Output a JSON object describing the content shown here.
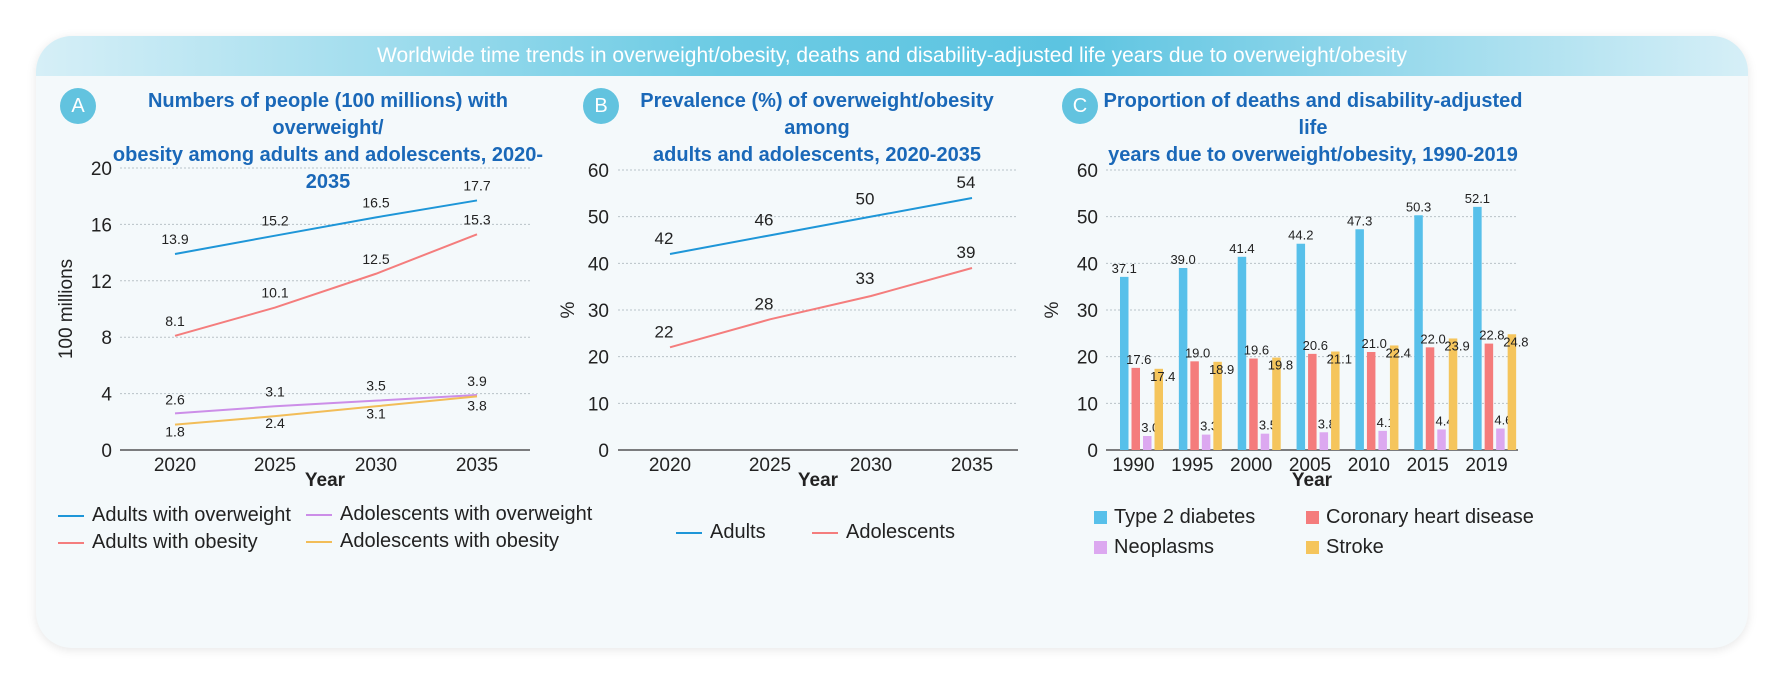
{
  "banner_title": "Worldwide time trends in overweight/obesity, deaths and disability-adjusted life years due to overweight/obesity",
  "colors": {
    "blue_line": "#1e96d8",
    "red_line": "#f47d7d",
    "purple_line": "#cc8ee8",
    "orange_line": "#f2bd58",
    "diabetes": "#57c0ea",
    "chd": "#f47c7c",
    "neoplasms": "#dca8f0",
    "stroke": "#f5c55c"
  },
  "panels": {
    "a": {
      "badge": "A",
      "title": "Numbers of people (100 millions) with overweight/\nobesity among adults and adolescents,  2020-2035"
    },
    "b": {
      "badge": "B",
      "title": "Prevalence (%) of overweight/obesity among\nadults and adolescents,  2020-2035"
    },
    "c": {
      "badge": "C",
      "title": "Proportion of deaths and disability-adjusted life\nyears due to overweight/obesity, 1990-2019"
    }
  },
  "chart_data": [
    {
      "type": "line",
      "title": "Numbers of people (100 millions) with overweight/obesity among adults and adolescents,  2020-2035",
      "xlabel": "Year",
      "ylabel": "100 millions",
      "x": [
        2020,
        2025,
        2030,
        2035
      ],
      "ylim": [
        0,
        20
      ],
      "yticks": [
        0,
        4,
        8,
        12,
        16,
        20
      ],
      "grid": true,
      "legend": "bottom",
      "series": [
        {
          "name": "Adults with overweight",
          "values": [
            13.9,
            15.2,
            16.5,
            17.7
          ],
          "labels": [
            "13.9",
            "15.2",
            "16.5",
            "17.7"
          ],
          "color": "#1e96d8"
        },
        {
          "name": "Adults with obesity",
          "values": [
            8.1,
            10.1,
            12.5,
            15.3
          ],
          "labels": [
            "8.1",
            "10.1",
            "12.5",
            "15.3"
          ],
          "color": "#f47d7d"
        },
        {
          "name": "Adolescents with overweight",
          "values": [
            2.6,
            3.1,
            3.5,
            3.9
          ],
          "labels": [
            "2.6",
            "3.1",
            "3.5",
            "3.9"
          ],
          "color": "#cc8ee8"
        },
        {
          "name": "Adolescents with obesity",
          "values": [
            1.8,
            2.4,
            3.1,
            3.8
          ],
          "labels": [
            "1.8",
            "2.4",
            "3.1",
            "3.8"
          ],
          "color": "#f2bd58"
        }
      ]
    },
    {
      "type": "line",
      "title": "Prevalence (%) of overweight/obesity among adults and adolescents,  2020-2035",
      "xlabel": "Year",
      "ylabel": "%",
      "x": [
        2020,
        2025,
        2030,
        2035
      ],
      "ylim": [
        0,
        60
      ],
      "yticks": [
        0,
        10,
        20,
        30,
        40,
        50,
        60
      ],
      "grid": true,
      "legend": "bottom",
      "series": [
        {
          "name": "Adults",
          "values": [
            42,
            46,
            50,
            54
          ],
          "labels": [
            "42",
            "46",
            "50",
            "54"
          ],
          "color": "#1e96d8"
        },
        {
          "name": "Adolescents",
          "values": [
            22,
            28,
            33,
            39
          ],
          "labels": [
            "22",
            "28",
            "33",
            "39"
          ],
          "color": "#f47d7d"
        }
      ]
    },
    {
      "type": "bar",
      "title": "Proportion of deaths and disability-adjusted life years due to overweight/obesity, 1990-2019",
      "xlabel": "Year",
      "ylabel": "%",
      "categories": [
        "1990",
        "1995",
        "2000",
        "2005",
        "2010",
        "2015",
        "2019"
      ],
      "ylim": [
        0,
        60
      ],
      "yticks": [
        0,
        10,
        20,
        30,
        40,
        50,
        60
      ],
      "grid": true,
      "legend": "bottom",
      "series": [
        {
          "name": "Type 2 diabetes",
          "values": [
            37.1,
            39.0,
            41.4,
            44.2,
            47.3,
            50.3,
            52.1
          ],
          "labels": [
            "37.1",
            "39.0",
            "41.4",
            "44.2",
            "47.3",
            "50.3",
            "52.1"
          ],
          "color": "#57c0ea"
        },
        {
          "name": "Coronary heart disease",
          "values": [
            17.6,
            19.0,
            19.6,
            20.6,
            21.0,
            22.0,
            22.8
          ],
          "labels": [
            "17.6",
            "19.0",
            "19.6",
            "20.6",
            "21.0",
            "22.0",
            "22.8"
          ],
          "color": "#f47c7c"
        },
        {
          "name": "Neoplasms",
          "values": [
            3.0,
            3.3,
            3.5,
            3.8,
            4.1,
            4.4,
            4.6
          ],
          "labels": [
            "3.0",
            "3.3",
            "3.5",
            "3.8",
            "4.1",
            "4.4",
            "4.6"
          ],
          "color": "#dca8f0"
        },
        {
          "name": "Stroke",
          "values": [
            17.4,
            18.9,
            19.8,
            21.1,
            22.4,
            23.9,
            24.8
          ],
          "labels": [
            "17.4",
            "18.9",
            "19.8",
            "21.1",
            "22.4",
            "23.9",
            "24.8"
          ],
          "color": "#f5c55c"
        }
      ]
    }
  ]
}
